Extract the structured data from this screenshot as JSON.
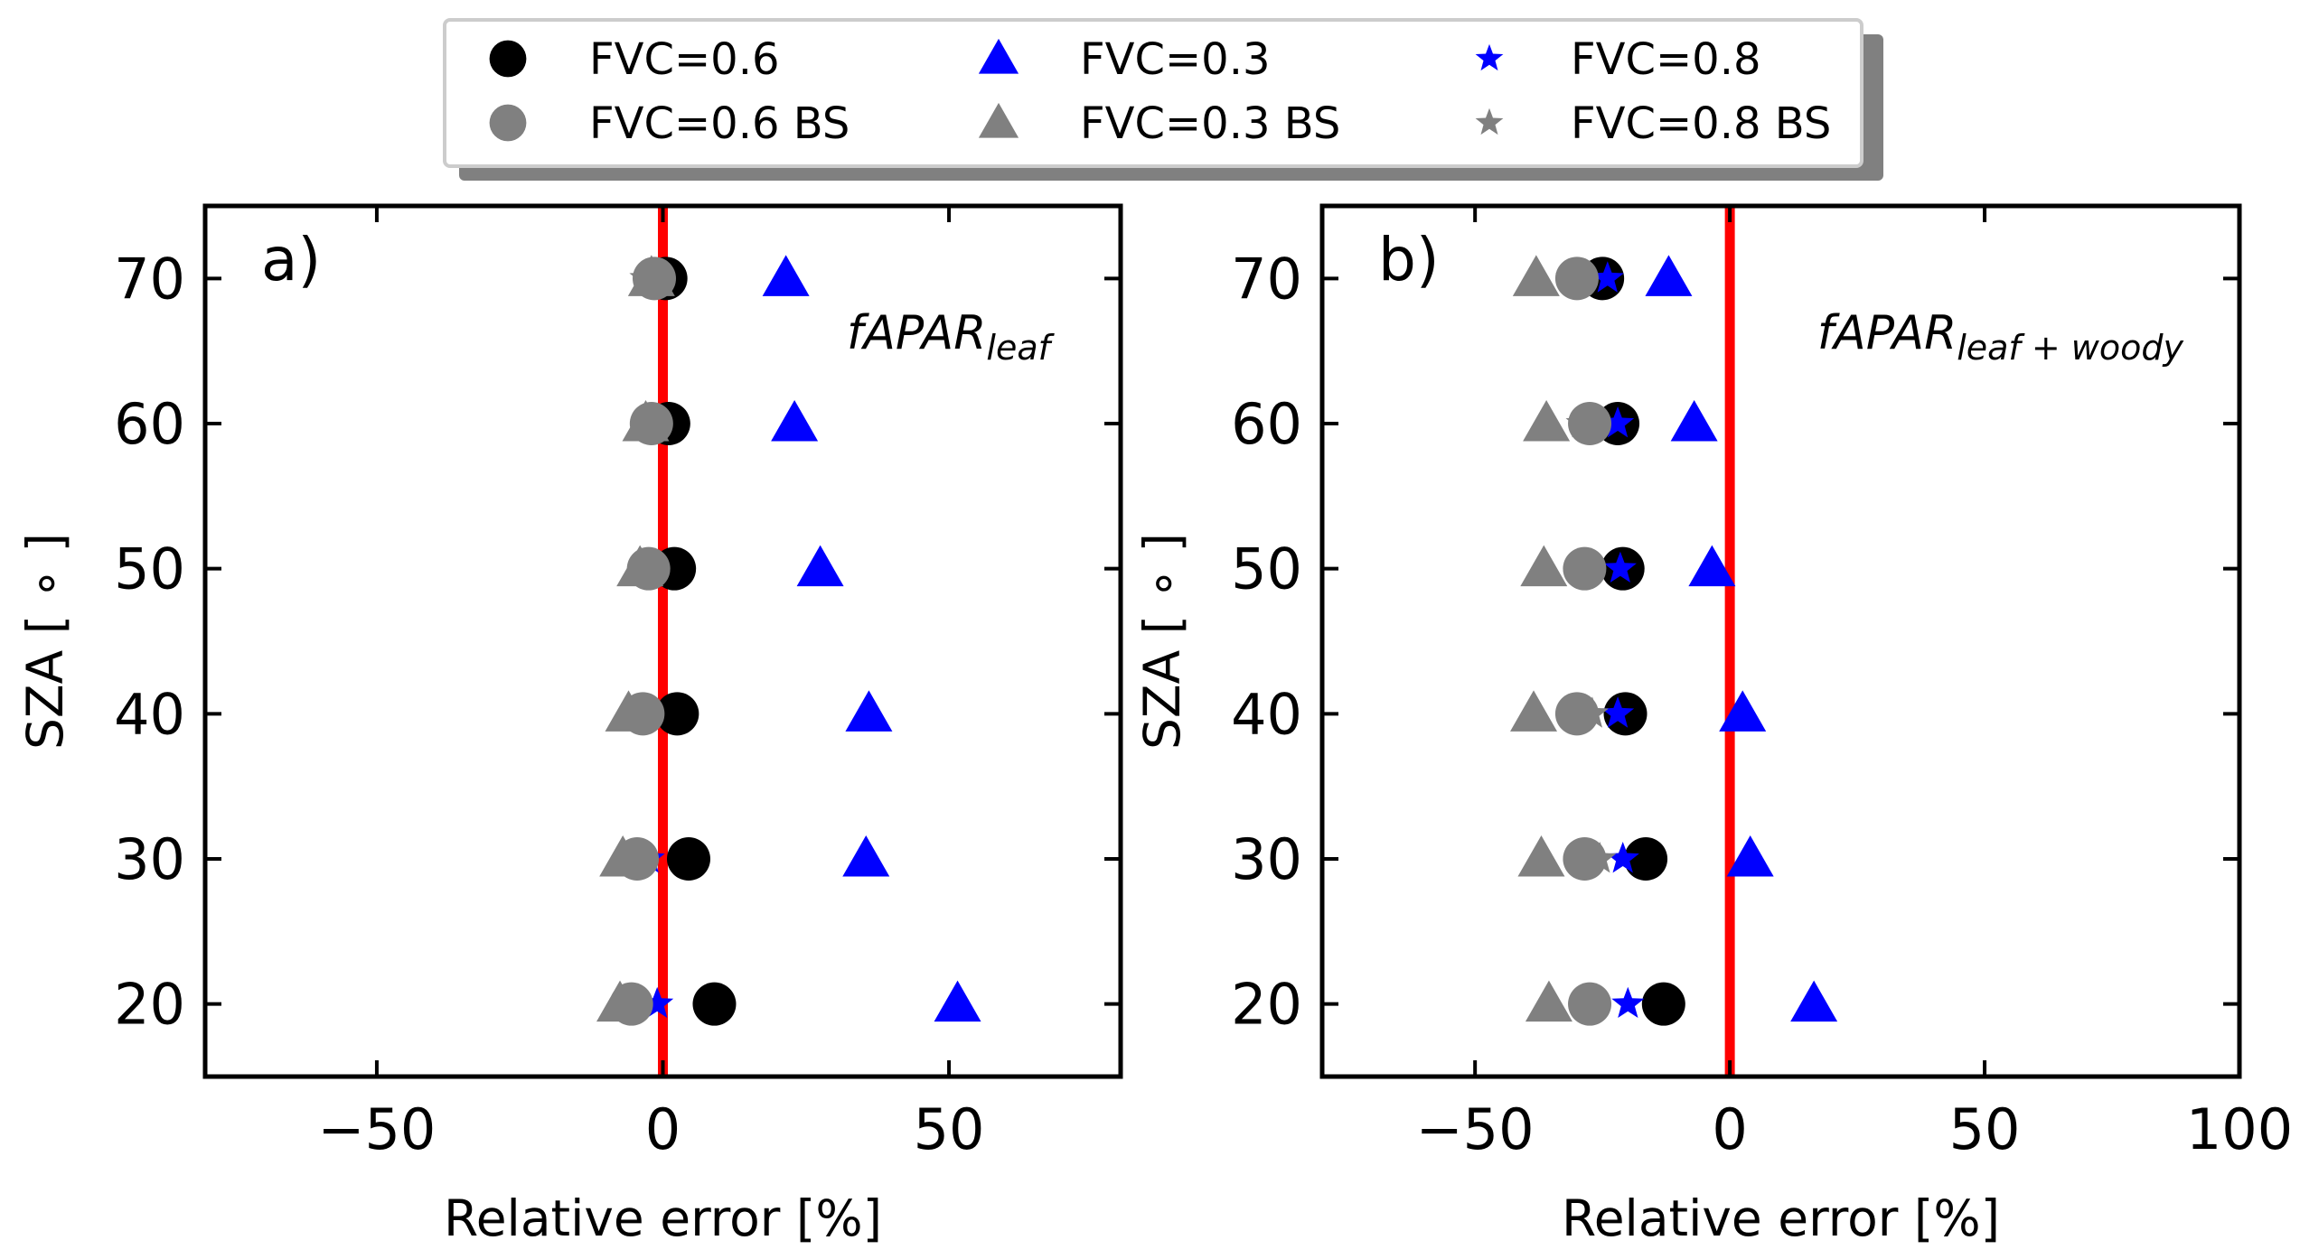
{
  "chart_data": [
    {
      "type": "scatter",
      "panel_label": "a)",
      "annotation": {
        "main": "fAPAR",
        "sub": "leaf"
      },
      "xlabel": "Relative error [%]",
      "ylabel": "SZA [ ∘ ]",
      "xlim": [
        -80,
        80
      ],
      "ylim": [
        15,
        75
      ],
      "xticks": [
        -50,
        0,
        50
      ],
      "xtick_labels": [
        "−50",
        "0",
        "50"
      ],
      "yticks": [
        20,
        30,
        40,
        50,
        60,
        70
      ],
      "ytick_labels": [
        "20",
        "30",
        "40",
        "50",
        "60",
        "70"
      ],
      "reference_line_x": 0,
      "series": [
        {
          "name": "FVC=0.6",
          "marker": "circle",
          "color": "#000000",
          "x": [
            9,
            4.5,
            2.5,
            2,
            1,
            0.5
          ],
          "y": [
            20,
            30,
            40,
            50,
            60,
            70
          ]
        },
        {
          "name": "FVC=0.3",
          "marker": "triangle",
          "color": "#0000ff",
          "x": [
            51.5,
            35.5,
            36,
            27.5,
            23,
            21.5
          ],
          "y": [
            20,
            30,
            40,
            50,
            60,
            70
          ]
        },
        {
          "name": "FVC=0.8",
          "marker": "star",
          "color": "#0000ff",
          "x": [
            -1,
            -2.5,
            -4,
            -3,
            -2,
            -2
          ],
          "y": [
            20,
            30,
            40,
            50,
            60,
            70
          ]
        },
        {
          "name": "FVC=0.6 BS",
          "marker": "circle",
          "color": "#808080",
          "x": [
            -5.5,
            -4.5,
            -3.5,
            -2.5,
            -2,
            -1.5
          ],
          "y": [
            20,
            30,
            40,
            50,
            60,
            70
          ]
        },
        {
          "name": "FVC=0.3 BS",
          "marker": "triangle",
          "color": "#808080",
          "x": [
            -7.5,
            -7,
            -6,
            -4,
            -3,
            -2
          ],
          "y": [
            20,
            30,
            40,
            50,
            60,
            70
          ]
        },
        {
          "name": "FVC=0.8 BS",
          "marker": "star",
          "color": "#808080",
          "x": [
            -6.5,
            -5.5,
            -4.5,
            -3,
            -2,
            -3
          ],
          "y": [
            20,
            30,
            40,
            50,
            60,
            70
          ]
        }
      ]
    },
    {
      "type": "scatter",
      "panel_label": "b)",
      "annotation": {
        "main": "fAPAR",
        "sub": "leaf + woody"
      },
      "xlabel": "Relative error [%]",
      "ylabel": "SZA [ ∘ ]",
      "xlim": [
        -80,
        100
      ],
      "ylim": [
        15,
        75
      ],
      "xticks": [
        -50,
        0,
        50,
        100
      ],
      "xtick_labels": [
        "−50",
        "0",
        "50",
        "100"
      ],
      "yticks": [
        20,
        30,
        40,
        50,
        60,
        70
      ],
      "ytick_labels": [
        "20",
        "30",
        "40",
        "50",
        "60",
        "70"
      ],
      "reference_line_x": 0,
      "series": [
        {
          "name": "FVC=0.6",
          "marker": "circle",
          "color": "#000000",
          "x": [
            -13,
            -16.5,
            -20.5,
            -21,
            -22,
            -25
          ],
          "y": [
            20,
            30,
            40,
            50,
            60,
            70
          ]
        },
        {
          "name": "FVC=0.3",
          "marker": "triangle",
          "color": "#0000ff",
          "x": [
            16.5,
            4,
            2.5,
            -3.5,
            -7,
            -12
          ],
          "y": [
            20,
            30,
            40,
            50,
            60,
            70
          ]
        },
        {
          "name": "FVC=0.8",
          "marker": "star",
          "color": "#0000ff",
          "x": [
            -20,
            -21,
            -22,
            -21.5,
            -22,
            -24
          ],
          "y": [
            20,
            30,
            40,
            50,
            60,
            70
          ]
        },
        {
          "name": "FVC=0.6 BS",
          "marker": "circle",
          "color": "#808080",
          "x": [
            -27.5,
            -28.5,
            -30,
            -28.5,
            -27.5,
            -30
          ],
          "y": [
            20,
            30,
            40,
            50,
            60,
            70
          ]
        },
        {
          "name": "FVC=0.3 BS",
          "marker": "triangle",
          "color": "#808080",
          "x": [
            -35.5,
            -37,
            -38.5,
            -36.5,
            -36,
            -38
          ],
          "y": [
            20,
            30,
            40,
            50,
            60,
            70
          ]
        },
        {
          "name": "FVC=0.8 BS",
          "marker": "star",
          "color": "#808080",
          "x": [
            -26.5,
            -25.5,
            -27,
            -28,
            -29,
            -31
          ],
          "y": [
            20,
            30,
            40,
            50,
            60,
            70
          ]
        }
      ]
    }
  ],
  "legend": {
    "placement": "top-center",
    "columns": 3,
    "entries": [
      {
        "label": "FVC=0.6",
        "marker": "circle",
        "color": "#000000"
      },
      {
        "label": "FVC=0.3",
        "marker": "triangle",
        "color": "#0000ff"
      },
      {
        "label": "FVC=0.8",
        "marker": "star",
        "color": "#0000ff"
      },
      {
        "label": "FVC=0.6 BS",
        "marker": "circle",
        "color": "#808080"
      },
      {
        "label": "FVC=0.3 BS",
        "marker": "triangle",
        "color": "#808080"
      },
      {
        "label": "FVC=0.8 BS",
        "marker": "star",
        "color": "#808080"
      }
    ]
  },
  "colors": {
    "reference_line": "#ff0000",
    "axes": "#000000",
    "legend_shadow": "#808080"
  }
}
